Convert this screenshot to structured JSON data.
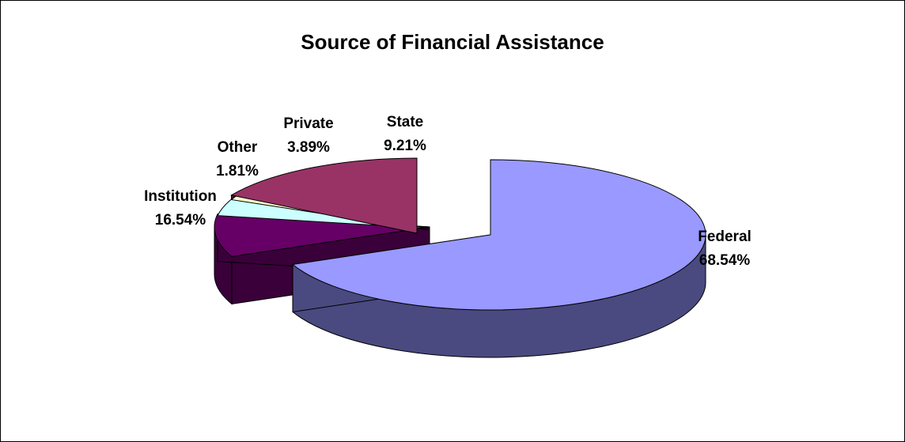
{
  "chart_data": {
    "type": "pie",
    "title": "Source of Financial Assistance",
    "style": "3d-exploded",
    "slices": [
      {
        "name": "Federal",
        "value": 68.54,
        "label": "68.54%",
        "color": "#9999ff",
        "side_color": "#4a4a80"
      },
      {
        "name": "State",
        "value": 9.21,
        "label": "9.21%",
        "color": "#660066",
        "side_color": "#3a003a"
      },
      {
        "name": "Private",
        "value": 3.89,
        "label": "3.89%",
        "color": "#ccffff",
        "side_color": "#6f8f8f"
      },
      {
        "name": "Other",
        "value": 1.81,
        "label": "1.81%",
        "color": "#ffffcc",
        "side_color": "#8f8f70"
      },
      {
        "name": "Institution",
        "value": 16.54,
        "label": "16.54%",
        "color": "#993366",
        "side_color": "#4d1933"
      }
    ]
  }
}
